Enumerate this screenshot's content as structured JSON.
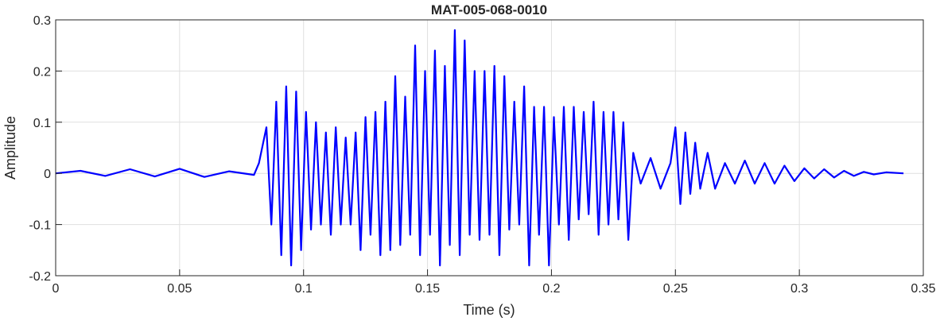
{
  "chart_data": {
    "type": "line",
    "title": "MAT-005-068-0010",
    "xlabel": "Time (s)",
    "ylabel": "Amplitude",
    "xlim": [
      0,
      0.35
    ],
    "ylim": [
      -0.2,
      0.3
    ],
    "xticks": [
      0,
      0.05,
      0.1,
      0.15,
      0.2,
      0.25,
      0.3,
      0.35
    ],
    "xtick_labels": [
      "0",
      "0.05",
      "0.1",
      "0.15",
      "0.2",
      "0.25",
      "0.3",
      "0.35"
    ],
    "yticks": [
      -0.2,
      -0.1,
      0,
      0.1,
      0.2,
      0.3
    ],
    "ytick_labels": [
      "-0.2",
      "-0.1",
      "0",
      "0.1",
      "0.2",
      "0.3"
    ],
    "grid": true,
    "line_color": "#0000ff",
    "series": [
      {
        "x": [
          0,
          0.01,
          0.02,
          0.03,
          0.04,
          0.05,
          0.06,
          0.07,
          0.08,
          0.082,
          0.085,
          0.087,
          0.089,
          0.091,
          0.093,
          0.095,
          0.097,
          0.099,
          0.101,
          0.103,
          0.105,
          0.107,
          0.109,
          0.111,
          0.113,
          0.115,
          0.117,
          0.119,
          0.121,
          0.123,
          0.125,
          0.127,
          0.129,
          0.131,
          0.133,
          0.135,
          0.137,
          0.139,
          0.141,
          0.143,
          0.145,
          0.147,
          0.149,
          0.151,
          0.153,
          0.155,
          0.157,
          0.159,
          0.161,
          0.163,
          0.165,
          0.167,
          0.169,
          0.171,
          0.173,
          0.175,
          0.177,
          0.179,
          0.181,
          0.183,
          0.185,
          0.187,
          0.189,
          0.191,
          0.193,
          0.195,
          0.197,
          0.199,
          0.201,
          0.203,
          0.205,
          0.207,
          0.209,
          0.211,
          0.213,
          0.215,
          0.217,
          0.219,
          0.221,
          0.223,
          0.225,
          0.227,
          0.229,
          0.231,
          0.233,
          0.236,
          0.24,
          0.244,
          0.248,
          0.25,
          0.252,
          0.254,
          0.256,
          0.258,
          0.26,
          0.263,
          0.266,
          0.27,
          0.274,
          0.278,
          0.282,
          0.286,
          0.29,
          0.294,
          0.298,
          0.302,
          0.306,
          0.31,
          0.314,
          0.318,
          0.322,
          0.326,
          0.33,
          0.335,
          0.342
        ],
        "y": [
          0,
          0.005,
          -0.005,
          0.008,
          -0.006,
          0.009,
          -0.007,
          0.004,
          -0.003,
          0.02,
          0.09,
          -0.1,
          0.14,
          -0.16,
          0.17,
          -0.18,
          0.16,
          -0.15,
          0.12,
          -0.11,
          0.1,
          -0.1,
          0.08,
          -0.12,
          0.09,
          -0.1,
          0.07,
          -0.1,
          0.08,
          -0.15,
          0.11,
          -0.12,
          0.12,
          -0.16,
          0.14,
          -0.15,
          0.19,
          -0.14,
          0.15,
          -0.12,
          0.25,
          -0.16,
          0.2,
          -0.12,
          0.24,
          -0.18,
          0.21,
          -0.14,
          0.28,
          -0.16,
          0.26,
          -0.12,
          0.2,
          -0.13,
          0.2,
          -0.12,
          0.21,
          -0.16,
          0.19,
          -0.11,
          0.14,
          -0.1,
          0.17,
          -0.18,
          0.13,
          -0.12,
          0.13,
          -0.18,
          0.11,
          -0.1,
          0.13,
          -0.13,
          0.13,
          -0.09,
          0.12,
          -0.08,
          0.14,
          -0.12,
          0.12,
          -0.1,
          0.12,
          -0.09,
          0.1,
          -0.13,
          0.04,
          -0.02,
          0.03,
          -0.03,
          0.02,
          0.09,
          -0.06,
          0.08,
          -0.04,
          0.06,
          -0.03,
          0.04,
          -0.03,
          0.02,
          -0.02,
          0.025,
          -0.02,
          0.02,
          -0.02,
          0.015,
          -0.015,
          0.01,
          -0.01,
          0.008,
          -0.008,
          0.005,
          -0.005,
          0.003,
          -0.002,
          0.002,
          0
        ]
      }
    ]
  }
}
